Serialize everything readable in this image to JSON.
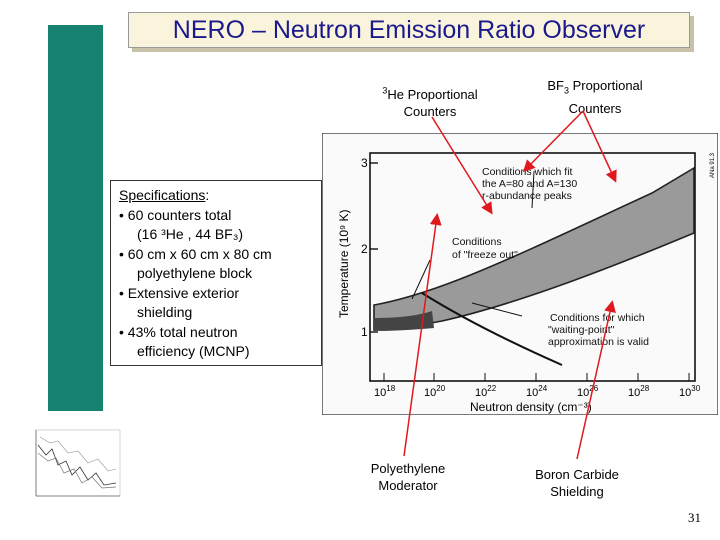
{
  "slide": {
    "title": "NERO – Neutron Emission Ratio Observer",
    "page_number": "31"
  },
  "callouts": {
    "he3": {
      "line1_sup": "3",
      "line1_rest": "He Proportional",
      "line2": "Counters"
    },
    "bf3": {
      "line1_pre": "BF",
      "line1_sub": "3",
      "line1_rest": " Proportional",
      "line2": "Counters"
    },
    "poly": {
      "line1": "Polyethylene",
      "line2": "Moderator"
    },
    "boron": {
      "line1": "Boron Carbide",
      "line2": "Shielding"
    }
  },
  "specs": {
    "heading": "Specifications",
    "heading_colon": ":",
    "lines": [
      "• 60 counters total",
      "(16 ³He , 44 BF₃)",
      "• 60 cm x 60 cm x 80 cm",
      "polyethylene block",
      "• Extensive exterior",
      "shielding",
      "• 43% total neutron",
      "efficiency (MCNP)"
    ]
  },
  "figure": {
    "y_axis_label": "Temperature (10⁹ K)",
    "x_axis_label": "Neutron density (cm⁻³)",
    "y_ticks": [
      "1",
      "2",
      "3"
    ],
    "x_ticks": [
      "10",
      "10",
      "10",
      "10",
      "10",
      "10",
      "10"
    ],
    "x_tick_exps": [
      "18",
      "20",
      "22",
      "24",
      "26",
      "28",
      "30"
    ],
    "corner_tag": "ANa 91.3",
    "annotations": {
      "fit": [
        "Conditions which fit",
        "the A=80 and A=130",
        "r-abundance peaks"
      ],
      "freeze": [
        "Conditions",
        "of \"freeze out\""
      ],
      "waiting": [
        "Conditions for which",
        "\"waiting-point\"",
        "approximation is valid"
      ]
    }
  },
  "colors": {
    "green_bar": "#17826f",
    "title_bg": "#fbf4dd",
    "title_text": "#1a1a8c",
    "arrows": "#e0191e"
  }
}
